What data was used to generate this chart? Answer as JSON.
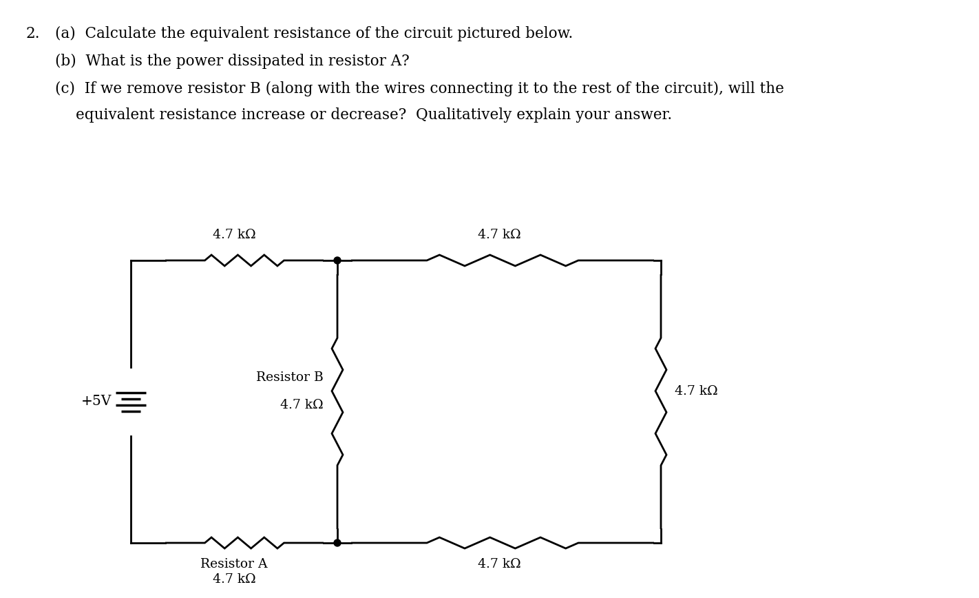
{
  "bg_color": "#ffffff",
  "line_color": "#000000",
  "font_family": "DejaVu Serif",
  "labels": {
    "top_left_resistor": "4.7 kΩ",
    "top_right_resistor": "4.7 kΩ",
    "bottom_left_label1": "Resistor A",
    "bottom_left_label2": "4.7 kΩ",
    "bottom_right_resistor": "4.7 kΩ",
    "mid_label1": "Resistor B",
    "mid_label2": "4.7 kΩ",
    "right_resistor": "4.7 kΩ",
    "voltage": "+5V"
  },
  "q1": "2.   (a)  Calculate the equivalent resistance of the circuit pictured below.",
  "q2": "      (b)  What is the power dissipated in resistor A?",
  "q3a": "      (c)  If we remove resistor B (along with the wires connecting it to the rest of the circuit), will the",
  "q3b": "             equivalent resistance increase or decrease?  Qualitatively explain your answer."
}
